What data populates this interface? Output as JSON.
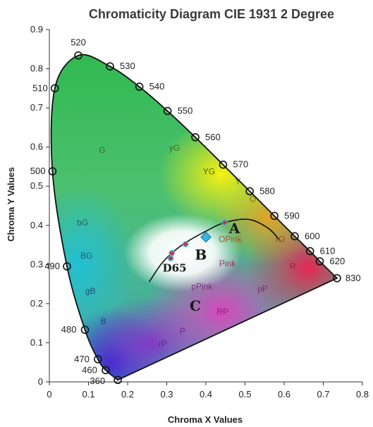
{
  "chart_data": {
    "type": "scatter",
    "title": "Chromaticity Diagram CIE 1931 2 Degree",
    "xlabel": "Chroma X Values",
    "ylabel": "Chroma Y Values",
    "xlim": [
      0,
      0.8
    ],
    "ylim": [
      0,
      0.9
    ],
    "x_ticks": [
      "0",
      "0.1",
      "0.2",
      "0.3",
      "0.4",
      "0.5",
      "0.6",
      "0.7",
      "0.8"
    ],
    "y_ticks": [
      "0",
      "0.1",
      "0.2",
      "0.3",
      "0.4",
      "0.5",
      "0.6",
      "0.7",
      "0.8",
      "0.9"
    ],
    "spectral_locus": [
      {
        "label": "360",
        "x": 0.175,
        "y": 0.005
      },
      {
        "label": "460",
        "x": 0.144,
        "y": 0.03
      },
      {
        "label": "470",
        "x": 0.124,
        "y": 0.058
      },
      {
        "label": "480",
        "x": 0.091,
        "y": 0.133
      },
      {
        "label": "490",
        "x": 0.045,
        "y": 0.295
      },
      {
        "label": "500",
        "x": 0.008,
        "y": 0.538
      },
      {
        "label": "510",
        "x": 0.014,
        "y": 0.75
      },
      {
        "label": "520",
        "x": 0.074,
        "y": 0.834
      },
      {
        "label": "530",
        "x": 0.155,
        "y": 0.806
      },
      {
        "label": "540",
        "x": 0.23,
        "y": 0.754
      },
      {
        "label": "550",
        "x": 0.302,
        "y": 0.692
      },
      {
        "label": "560",
        "x": 0.373,
        "y": 0.625
      },
      {
        "label": "570",
        "x": 0.444,
        "y": 0.555
      },
      {
        "label": "580",
        "x": 0.512,
        "y": 0.487
      },
      {
        "label": "590",
        "x": 0.575,
        "y": 0.424
      },
      {
        "label": "600",
        "x": 0.627,
        "y": 0.372
      },
      {
        "label": "610",
        "x": 0.666,
        "y": 0.334
      },
      {
        "label": "620",
        "x": 0.691,
        "y": 0.308
      },
      {
        "label": "830",
        "x": 0.735,
        "y": 0.265
      }
    ],
    "planckian_locus": [
      {
        "x": 0.255,
        "y": 0.255
      },
      {
        "x": 0.285,
        "y": 0.3
      },
      {
        "x": 0.313,
        "y": 0.329
      },
      {
        "x": 0.347,
        "y": 0.355
      },
      {
        "x": 0.4,
        "y": 0.385
      },
      {
        "x": 0.448,
        "y": 0.407
      },
      {
        "x": 0.51,
        "y": 0.415
      },
      {
        "x": 0.56,
        "y": 0.392
      },
      {
        "x": 0.59,
        "y": 0.36
      }
    ],
    "marked_points": [
      {
        "x": 0.313,
        "y": 0.329
      },
      {
        "x": 0.31,
        "y": 0.316
      },
      {
        "x": 0.348,
        "y": 0.352
      },
      {
        "x": 0.448,
        "y": 0.407
      },
      {
        "x": 0.4,
        "y": 0.37
      }
    ],
    "region_labels": [
      {
        "text": "G",
        "x": 0.135,
        "y": 0.585,
        "color": "#2c6e3a"
      },
      {
        "text": "yG",
        "x": 0.32,
        "y": 0.59,
        "color": "#3c6a20"
      },
      {
        "text": "YG",
        "x": 0.408,
        "y": 0.53,
        "color": "#5a6a10"
      },
      {
        "text": "bG",
        "x": 0.085,
        "y": 0.4,
        "color": "#2a5f6a"
      },
      {
        "text": "BG",
        "x": 0.095,
        "y": 0.315,
        "color": "#2a5a6a"
      },
      {
        "text": "gB",
        "x": 0.105,
        "y": 0.225,
        "color": "#2a4a7a"
      },
      {
        "text": "B",
        "x": 0.138,
        "y": 0.148,
        "color": "#2a3a8a"
      },
      {
        "text": "OPink",
        "x": 0.462,
        "y": 0.357,
        "color": "#a05a2a"
      },
      {
        "text": "rO",
        "x": 0.59,
        "y": 0.357,
        "color": "#a04020"
      },
      {
        "text": "Pink",
        "x": 0.455,
        "y": 0.295,
        "color": "#8a3a6a"
      },
      {
        "text": "R",
        "x": 0.622,
        "y": 0.288,
        "color": "#8a2040"
      },
      {
        "text": "pPink",
        "x": 0.39,
        "y": 0.237,
        "color": "#7a2a7a"
      },
      {
        "text": "pP",
        "x": 0.545,
        "y": 0.23,
        "color": "#7a2a7a"
      },
      {
        "text": "RP",
        "x": 0.443,
        "y": 0.172,
        "color": "#7a2a6a"
      },
      {
        "text": "P",
        "x": 0.34,
        "y": 0.122,
        "color": "#6a2a8a"
      },
      {
        "text": "rP",
        "x": 0.29,
        "y": 0.09,
        "color": "#5a2a8a"
      },
      {
        "text": "Y",
        "x": 0.482,
        "y": 0.505,
        "color": "#6a6a10"
      },
      {
        "text": "O",
        "x": 0.52,
        "y": 0.46,
        "color": "#8a6a10"
      }
    ],
    "annotations": [
      {
        "text": "A",
        "x": 0.473,
        "y": 0.38
      },
      {
        "text": "B",
        "x": 0.387,
        "y": 0.312
      },
      {
        "text": "D65",
        "x": 0.32,
        "y": 0.282
      },
      {
        "text": "C",
        "x": 0.373,
        "y": 0.182
      }
    ]
  }
}
